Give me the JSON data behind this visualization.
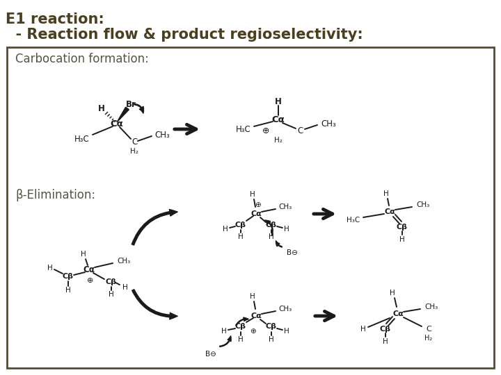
{
  "title1": "E1 reaction:",
  "title2": "  - Reaction flow & product regioselectivity:",
  "section1": "Carbocation formation:",
  "section2": "β-Elimination:",
  "title_color": "#4a3f1f",
  "title_fontsize": 15,
  "subtitle_fontsize": 15,
  "section_fontsize": 12,
  "bg_color": "#ffffff",
  "box_color": "#5a4a28",
  "chem_color": "#1a1a1a"
}
